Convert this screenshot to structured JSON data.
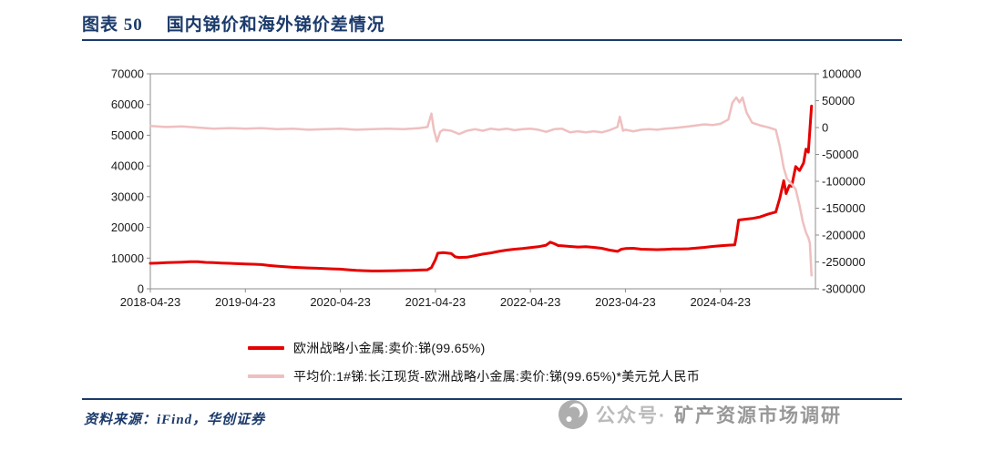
{
  "header": {
    "label": "图表 50",
    "title": "国内锑价和海外锑价差情况"
  },
  "chart_data": {
    "type": "line",
    "title": "国内锑价和海外锑价差情况",
    "x_unit": "months since 2018-04-23",
    "t_max": 84,
    "grid": false,
    "legend_position": "below",
    "x_ticks": [
      {
        "t": 0,
        "label": "2018-04-23"
      },
      {
        "t": 12,
        "label": "2019-04-23"
      },
      {
        "t": 24,
        "label": "2020-04-23"
      },
      {
        "t": 36,
        "label": "2021-04-23"
      },
      {
        "t": 48,
        "label": "2022-04-23"
      },
      {
        "t": 60,
        "label": "2023-04-23"
      },
      {
        "t": 72,
        "label": "2024-04-23"
      }
    ],
    "left_axis": {
      "min": 0,
      "max": 70000,
      "step": 10000
    },
    "right_axis": {
      "min": -300000,
      "max": 100000,
      "step": 50000
    },
    "series": [
      {
        "name": "欧洲战略小金属:卖价:锑(99.65%)",
        "axis": "left",
        "color": "#e60000",
        "width": 3,
        "points": [
          [
            0,
            8300
          ],
          [
            1,
            8400
          ],
          [
            2,
            8500
          ],
          [
            3,
            8600
          ],
          [
            4,
            8700
          ],
          [
            5,
            8800
          ],
          [
            6,
            8800
          ],
          [
            7,
            8600
          ],
          [
            8,
            8500
          ],
          [
            9,
            8400
          ],
          [
            10,
            8300
          ],
          [
            11,
            8200
          ],
          [
            12,
            8100
          ],
          [
            13,
            8000
          ],
          [
            14,
            7900
          ],
          [
            15,
            7600
          ],
          [
            16,
            7400
          ],
          [
            17,
            7200
          ],
          [
            18,
            7000
          ],
          [
            19,
            6900
          ],
          [
            20,
            6800
          ],
          [
            21,
            6700
          ],
          [
            22,
            6600
          ],
          [
            23,
            6500
          ],
          [
            24,
            6400
          ],
          [
            25,
            6200
          ],
          [
            26,
            6000
          ],
          [
            27,
            5900
          ],
          [
            28,
            5800
          ],
          [
            29,
            5800
          ],
          [
            30,
            5850
          ],
          [
            31,
            5900
          ],
          [
            32,
            5950
          ],
          [
            33,
            6000
          ],
          [
            34,
            6100
          ],
          [
            35,
            6200
          ],
          [
            35.5,
            6900
          ],
          [
            36,
            9500
          ],
          [
            36.3,
            11600
          ],
          [
            37,
            11800
          ],
          [
            38,
            11500
          ],
          [
            38.5,
            10400
          ],
          [
            39,
            10200
          ],
          [
            40,
            10300
          ],
          [
            41,
            10800
          ],
          [
            42,
            11300
          ],
          [
            43,
            11700
          ],
          [
            44,
            12200
          ],
          [
            45,
            12600
          ],
          [
            46,
            12900
          ],
          [
            47,
            13100
          ],
          [
            48,
            13400
          ],
          [
            49,
            13700
          ],
          [
            50,
            14200
          ],
          [
            50.5,
            15200
          ],
          [
            51,
            14700
          ],
          [
            51.5,
            14100
          ],
          [
            52,
            14000
          ],
          [
            53,
            13800
          ],
          [
            54,
            13600
          ],
          [
            55,
            13700
          ],
          [
            56,
            13500
          ],
          [
            57,
            13200
          ],
          [
            58,
            12600
          ],
          [
            59,
            12200
          ],
          [
            59.5,
            12900
          ],
          [
            60,
            13100
          ],
          [
            61,
            13200
          ],
          [
            62,
            12900
          ],
          [
            63,
            12800
          ],
          [
            64,
            12750
          ],
          [
            65,
            12850
          ],
          [
            66,
            12950
          ],
          [
            67,
            13000
          ],
          [
            68,
            13050
          ],
          [
            69,
            13250
          ],
          [
            70,
            13500
          ],
          [
            71,
            13800
          ],
          [
            72,
            14000
          ],
          [
            73,
            14200
          ],
          [
            73.8,
            14300
          ],
          [
            74,
            17000
          ],
          [
            74.3,
            22400
          ],
          [
            75,
            22600
          ],
          [
            76,
            22900
          ],
          [
            77,
            23400
          ],
          [
            78,
            24300
          ],
          [
            79,
            25000
          ],
          [
            79.5,
            29500
          ],
          [
            80,
            35200
          ],
          [
            80.3,
            31000
          ],
          [
            80.7,
            33600
          ],
          [
            81,
            33400
          ],
          [
            81.5,
            39800
          ],
          [
            82,
            38500
          ],
          [
            82.5,
            41000
          ],
          [
            82.8,
            45500
          ],
          [
            83.1,
            44500
          ],
          [
            83.5,
            59500
          ]
        ]
      },
      {
        "name": "平均价:1#锑:长江现货-欧洲战略小金属:卖价:锑(99.65%)*美元兑人民币",
        "axis": "right",
        "color": "#efbfbf",
        "width": 2.5,
        "points": [
          [
            0,
            3000
          ],
          [
            2,
            1000
          ],
          [
            4,
            2000
          ],
          [
            6,
            0
          ],
          [
            8,
            -2000
          ],
          [
            10,
            -1000
          ],
          [
            12,
            -2000
          ],
          [
            14,
            -1000
          ],
          [
            16,
            -3000
          ],
          [
            18,
            -2000
          ],
          [
            20,
            -4000
          ],
          [
            22,
            -3000
          ],
          [
            24,
            -2000
          ],
          [
            26,
            -4000
          ],
          [
            28,
            -3000
          ],
          [
            30,
            -2000
          ],
          [
            32,
            -3000
          ],
          [
            34,
            -1000
          ],
          [
            35,
            1000
          ],
          [
            35.5,
            26000
          ],
          [
            35.8,
            -3000
          ],
          [
            36.2,
            -26000
          ],
          [
            36.6,
            -8000
          ],
          [
            37,
            -4000
          ],
          [
            38,
            -6000
          ],
          [
            39,
            -12000
          ],
          [
            40,
            -6000
          ],
          [
            41,
            -3000
          ],
          [
            42,
            -6000
          ],
          [
            43,
            -2000
          ],
          [
            44,
            -4000
          ],
          [
            45,
            -2000
          ],
          [
            46,
            -5000
          ],
          [
            47,
            -3000
          ],
          [
            48,
            -2000
          ],
          [
            49,
            -4000
          ],
          [
            50,
            -8000
          ],
          [
            51,
            -3000
          ],
          [
            52,
            -2000
          ],
          [
            53,
            -9000
          ],
          [
            54,
            -7000
          ],
          [
            55,
            -9000
          ],
          [
            56,
            -7000
          ],
          [
            57,
            -9000
          ],
          [
            58,
            -5000
          ],
          [
            59,
            1000
          ],
          [
            59.3,
            20000
          ],
          [
            59.7,
            -6000
          ],
          [
            60,
            -4000
          ],
          [
            61,
            -7000
          ],
          [
            62,
            -4000
          ],
          [
            63,
            -3000
          ],
          [
            64,
            -4000
          ],
          [
            65,
            -2000
          ],
          [
            66,
            -1000
          ],
          [
            67,
            500
          ],
          [
            68,
            2000
          ],
          [
            69,
            4000
          ],
          [
            70,
            6000
          ],
          [
            71,
            4500
          ],
          [
            72,
            7000
          ],
          [
            73,
            15000
          ],
          [
            73.5,
            46000
          ],
          [
            74,
            56000
          ],
          [
            74.4,
            47000
          ],
          [
            74.8,
            56000
          ],
          [
            75.3,
            28000
          ],
          [
            76,
            9000
          ],
          [
            77,
            4000
          ],
          [
            78,
            500
          ],
          [
            79,
            -4000
          ],
          [
            79.5,
            -35000
          ],
          [
            80,
            -75000
          ],
          [
            80.4,
            -95000
          ],
          [
            81,
            -105000
          ],
          [
            81.5,
            -115000
          ],
          [
            82,
            -145000
          ],
          [
            82.4,
            -175000
          ],
          [
            82.8,
            -195000
          ],
          [
            83.1,
            -205000
          ],
          [
            83.3,
            -215000
          ],
          [
            83.5,
            -275000
          ]
        ]
      }
    ]
  },
  "legend": {
    "items": [
      {
        "label": "欧洲战略小金属:卖价:锑(99.65%)",
        "color": "#e60000"
      },
      {
        "label": "平均价:1#锑:长江现货-欧洲战略小金属:卖价:锑(99.65%)*美元兑人民币",
        "color": "#efbfbf"
      }
    ]
  },
  "footer": {
    "source": "资料来源：iFind，华创证券"
  },
  "watermark": {
    "prefix": "公众号·",
    "name": "矿产资源市场调研"
  },
  "colors": {
    "accent_navy": "#1b3a6b",
    "series_red": "#e60000",
    "series_pink": "#efbfbf",
    "watermark_gray": "#8d8d8d"
  }
}
